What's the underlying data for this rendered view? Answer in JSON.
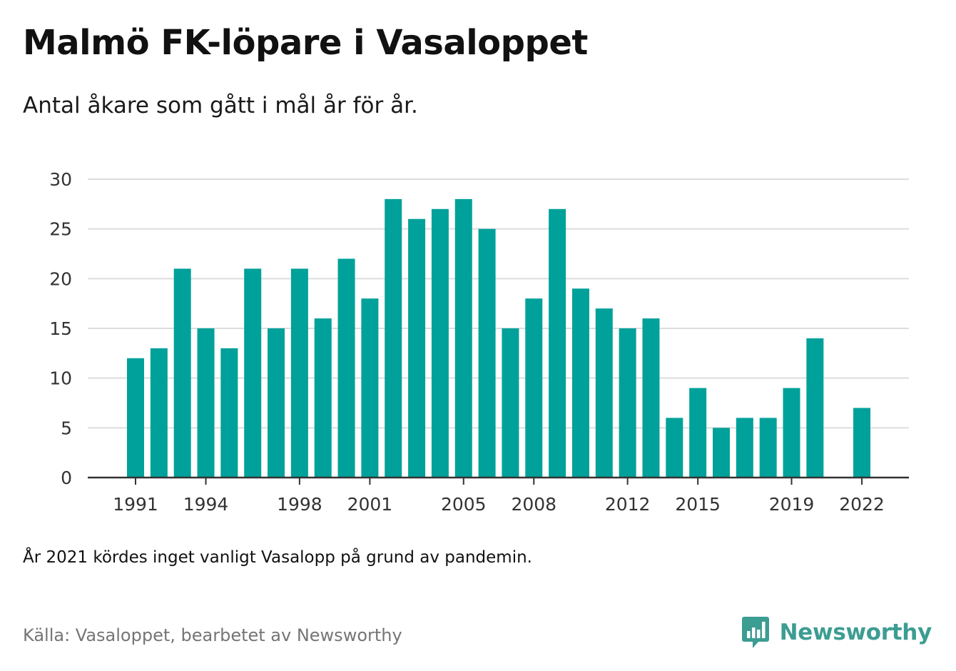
{
  "header": {
    "title": "Malmö FK-löpare i Vasaloppet",
    "subtitle": "Antal åkare som gått i mål år för år."
  },
  "footer": {
    "note": "År 2021 kördes inget vanligt Vasalopp på grund av pandemin.",
    "source": "Källa: Vasaloppet, bearbetet av Newsworthy",
    "brand": "Newsworthy",
    "brand_icon": "newsworthy-logo-icon"
  },
  "colors": {
    "bar": "#00a19a",
    "grid": "#dddddd",
    "axis": "#333333",
    "brand": "#3c9d92"
  },
  "chart_data": {
    "type": "bar",
    "title": "Malmö FK-löpare i Vasaloppet",
    "subtitle": "Antal åkare som gått i mål år för år.",
    "categories": [
      1991,
      1992,
      1993,
      1994,
      1995,
      1996,
      1997,
      1998,
      1999,
      2000,
      2001,
      2002,
      2003,
      2004,
      2005,
      2006,
      2007,
      2008,
      2009,
      2010,
      2011,
      2012,
      2013,
      2014,
      2015,
      2016,
      2017,
      2018,
      2019,
      2020,
      2021,
      2022
    ],
    "values": [
      12,
      13,
      21,
      15,
      13,
      21,
      15,
      21,
      16,
      22,
      18,
      28,
      26,
      27,
      28,
      25,
      15,
      18,
      27,
      19,
      17,
      15,
      16,
      6,
      9,
      5,
      6,
      6,
      9,
      14,
      null,
      7
    ],
    "x_tick_labels": [
      1991,
      1994,
      1998,
      2001,
      2005,
      2008,
      2012,
      2015,
      2019,
      2022
    ],
    "y_ticks": [
      0,
      5,
      10,
      15,
      20,
      25,
      30
    ],
    "ylim": [
      0,
      30
    ],
    "grid": true,
    "legend": "none",
    "xlabel": "",
    "ylabel": ""
  }
}
